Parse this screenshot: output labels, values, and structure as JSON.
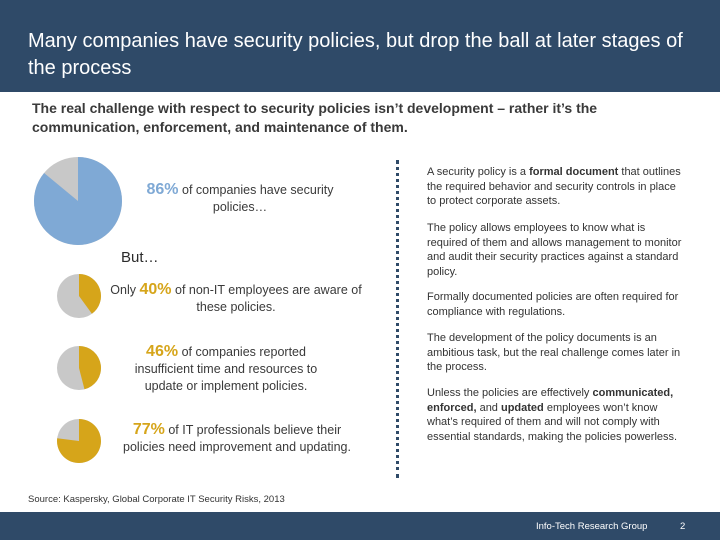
{
  "header": {
    "title": "Many companies have security policies, but drop the ball at later stages of the process"
  },
  "subtitle": "The real challenge with respect to security policies isn’t development – rather it’s the communication, enforcement, and maintenance of them.",
  "colors": {
    "header_bg": "#2f4a68",
    "pie_blue": "#7fa9d5",
    "pie_gold": "#d6a51a",
    "pie_gray": "#c8c8c8"
  },
  "stats": {
    "main": {
      "pct": "86%",
      "text": "of companies have security policies…",
      "value": 86
    },
    "but_label": "But…",
    "items": [
      {
        "prefix": "Only ",
        "pct": "40%",
        "text": "of non-IT employees are aware of these policies.",
        "value": 40
      },
      {
        "prefix": "",
        "pct": "46%",
        "text": "of companies reported insufficient time and resources to update or implement policies.",
        "value": 46
      },
      {
        "prefix": "",
        "pct": "77%",
        "text": "of IT professionals believe their policies need improvement and updating.",
        "value": 77
      }
    ]
  },
  "right_column": {
    "p1": {
      "a": "A security policy is a ",
      "b": "formal document",
      "c": " that outlines the required behavior and security controls in place to protect corporate assets."
    },
    "p2": "The policy allows employees to know what is required of them and allows management to monitor and audit their security practices against a standard policy.",
    "p3": "Formally documented policies are often required for compliance with regulations.",
    "p4": "The development of the policy documents is an ambitious task, but the real challenge comes later in the process.",
    "p5": {
      "a": "Unless the policies are effectively ",
      "b": "communicated, enforced,",
      "c": " and ",
      "d": "updated",
      "e": " employees won’t know what’s required of them and will not comply with essential standards, making the policies powerless."
    }
  },
  "source": "Source: Kaspersky, Global Corporate IT Security Risks, 2013",
  "footer": {
    "brand": "Info-Tech Research Group",
    "page": "2"
  }
}
